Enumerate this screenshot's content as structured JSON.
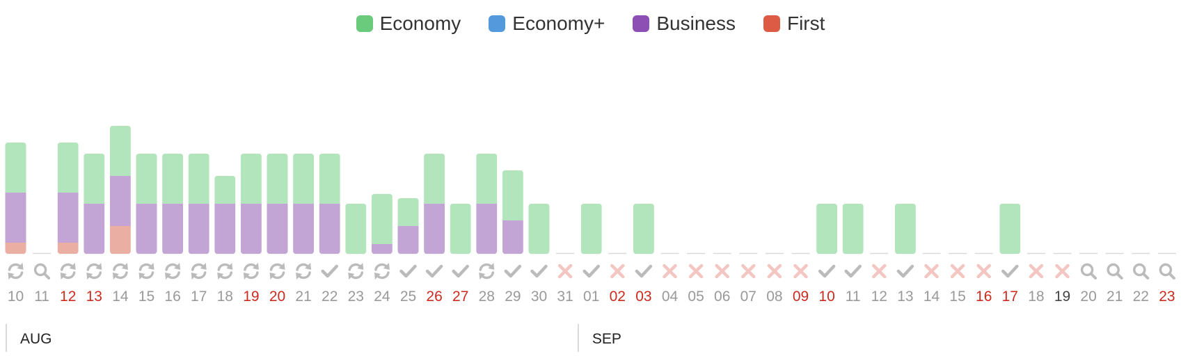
{
  "legend": [
    {
      "key": "economy",
      "label": "Economy",
      "color": "#6acb7c",
      "fill": "#b3e5bc"
    },
    {
      "key": "economy_plus",
      "label": "Economy+",
      "color": "#5599dd",
      "fill": "#a8cbef"
    },
    {
      "key": "business",
      "label": "Business",
      "color": "#8e4fb5",
      "fill": "#c3a5d5"
    },
    {
      "key": "first",
      "label": "First",
      "color": "#dd5a44",
      "fill": "#ebaea2"
    }
  ],
  "colors": {
    "weekday_label": "#999999",
    "weekend_label": "#cc2a1f",
    "today_label": "#444444",
    "status_refresh": "#bbbbbb",
    "status_search": "#bbbbbb",
    "status_check": "#bbbbbb",
    "status_unavailable": "#f3c6c2",
    "baseline": "#d9d9d9"
  },
  "months": [
    {
      "label": "AUG",
      "start_index": 0
    },
    {
      "label": "SEP",
      "start_index": 22
    }
  ],
  "chart_data": {
    "type": "bar",
    "stacked": true,
    "ylim": [
      0,
      8
    ],
    "categories": [
      "10",
      "11",
      "12",
      "13",
      "14",
      "15",
      "16",
      "17",
      "18",
      "19",
      "20",
      "21",
      "22",
      "23",
      "24",
      "25",
      "26",
      "27",
      "28",
      "29",
      "30",
      "31",
      "01",
      "02",
      "03",
      "04",
      "05",
      "06",
      "07",
      "08",
      "09",
      "10",
      "11",
      "12",
      "13",
      "14",
      "15",
      "16",
      "17",
      "18",
      "19",
      "20",
      "21",
      "22",
      "23"
    ],
    "series": [
      {
        "name": "First",
        "key": "first",
        "values": [
          0.4,
          0,
          0.4,
          0,
          1.0,
          0,
          0,
          0,
          0,
          0,
          0,
          0,
          0,
          0,
          0,
          0,
          0,
          0,
          0,
          0,
          0,
          0,
          0,
          0,
          0,
          0,
          0,
          0,
          0,
          0,
          0,
          0,
          0,
          0,
          0,
          0,
          0,
          0,
          0,
          0,
          0,
          0,
          0,
          0,
          0
        ]
      },
      {
        "name": "Business",
        "key": "business",
        "values": [
          1.8,
          0,
          1.8,
          1.8,
          1.8,
          1.8,
          1.8,
          1.8,
          1.8,
          1.8,
          1.8,
          1.8,
          1.8,
          0,
          0.35,
          1.0,
          1.8,
          0,
          1.8,
          1.2,
          0,
          0,
          0,
          0,
          0,
          0,
          0,
          0,
          0,
          0,
          0,
          0,
          0,
          0,
          0,
          0,
          0,
          0,
          0,
          0,
          0,
          0,
          0,
          0,
          0
        ]
      },
      {
        "name": "Economy+",
        "key": "economy_plus",
        "values": [
          0,
          0,
          0,
          0,
          0,
          0,
          0,
          0,
          0,
          0,
          0,
          0,
          0,
          0,
          0,
          0,
          0,
          0,
          0,
          0,
          0,
          0,
          0,
          0,
          0,
          0,
          0,
          0,
          0,
          0,
          0,
          0,
          0,
          0,
          0,
          0,
          0,
          0,
          0,
          0,
          0,
          0,
          0,
          0,
          0
        ]
      },
      {
        "name": "Economy",
        "key": "economy",
        "values": [
          1.8,
          0,
          1.8,
          1.8,
          1.8,
          1.8,
          1.8,
          1.8,
          1.0,
          1.8,
          1.8,
          1.8,
          1.8,
          1.8,
          1.8,
          1.0,
          1.8,
          1.8,
          1.8,
          1.8,
          1.8,
          0,
          1.8,
          0,
          1.8,
          0,
          0,
          0,
          0,
          0,
          0,
          1.8,
          1.8,
          0,
          1.8,
          0,
          0,
          0,
          1.8,
          0,
          0,
          0,
          0,
          0,
          0
        ]
      }
    ],
    "status": [
      "refresh",
      "search",
      "refresh",
      "refresh",
      "refresh",
      "refresh",
      "refresh",
      "refresh",
      "refresh",
      "refresh",
      "refresh",
      "refresh",
      "check",
      "refresh",
      "refresh",
      "check",
      "check",
      "check",
      "refresh",
      "check",
      "check",
      "x",
      "check",
      "x",
      "check",
      "x",
      "x",
      "x",
      "x",
      "x",
      "x",
      "check",
      "check",
      "x",
      "check",
      "x",
      "x",
      "x",
      "check",
      "x",
      "x",
      "search",
      "search",
      "search",
      "search"
    ],
    "weekend": [
      false,
      false,
      true,
      true,
      false,
      false,
      false,
      false,
      false,
      true,
      true,
      false,
      false,
      false,
      false,
      false,
      true,
      true,
      false,
      false,
      false,
      false,
      false,
      true,
      true,
      false,
      false,
      false,
      false,
      false,
      true,
      true,
      false,
      false,
      false,
      false,
      false,
      true,
      true,
      false,
      false,
      false,
      false,
      false,
      true
    ],
    "today_index": 40
  }
}
